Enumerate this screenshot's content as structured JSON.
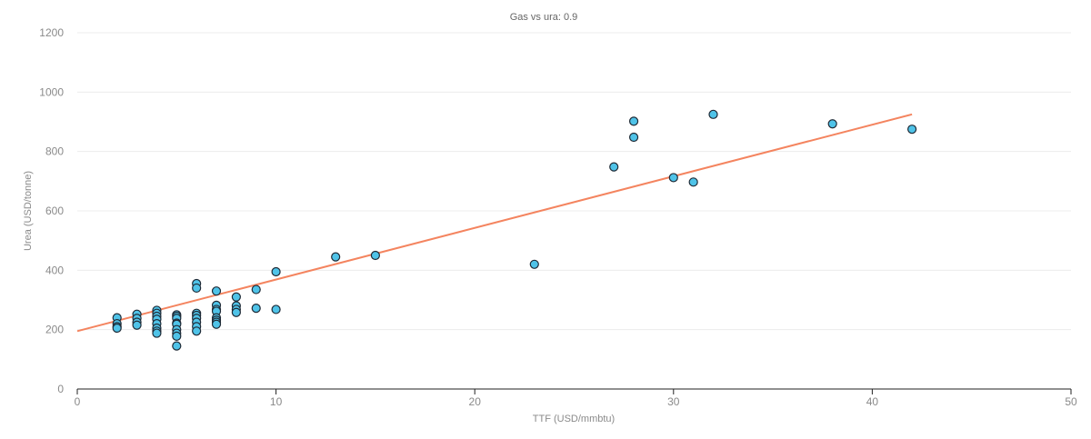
{
  "chart_data": {
    "type": "scatter",
    "title": "Gas vs ura: 0.9",
    "xlabel": "TTF (USD/mmbtu)",
    "ylabel": "Urea (USD/tonne)",
    "xlim": [
      0,
      50
    ],
    "ylim": [
      0,
      1200
    ],
    "x_ticks": [
      0,
      10,
      20,
      30,
      40,
      50
    ],
    "y_ticks": [
      0,
      200,
      400,
      600,
      800,
      1000,
      1200
    ],
    "grid": "horizontal",
    "legend": "none",
    "colors": {
      "points_fill": "#4fc3e8",
      "points_stroke": "#1f2a36",
      "trendline": "#f4845f"
    },
    "series": [
      {
        "points": [
          [
            2,
            240
          ],
          [
            2,
            220
          ],
          [
            2,
            210
          ],
          [
            2,
            205
          ],
          [
            3,
            252
          ],
          [
            3,
            238
          ],
          [
            3,
            225
          ],
          [
            3,
            215
          ],
          [
            4,
            265
          ],
          [
            4,
            255
          ],
          [
            4,
            245
          ],
          [
            4,
            235
          ],
          [
            4,
            220
          ],
          [
            4,
            205
          ],
          [
            4,
            195
          ],
          [
            4,
            188
          ],
          [
            5,
            250
          ],
          [
            5,
            245
          ],
          [
            5,
            238
          ],
          [
            5,
            222
          ],
          [
            5,
            218
          ],
          [
            5,
            200
          ],
          [
            5,
            188
          ],
          [
            5,
            178
          ],
          [
            5,
            145
          ],
          [
            6,
            355
          ],
          [
            6,
            340
          ],
          [
            6,
            255
          ],
          [
            6,
            248
          ],
          [
            6,
            238
          ],
          [
            6,
            225
          ],
          [
            6,
            210
          ],
          [
            6,
            195
          ],
          [
            7,
            330
          ],
          [
            7,
            282
          ],
          [
            7,
            268
          ],
          [
            7,
            262
          ],
          [
            7,
            240
          ],
          [
            7,
            232
          ],
          [
            7,
            225
          ],
          [
            7,
            218
          ],
          [
            8,
            310
          ],
          [
            8,
            280
          ],
          [
            8,
            268
          ],
          [
            8,
            258
          ],
          [
            9,
            335
          ],
          [
            9,
            272
          ],
          [
            10,
            395
          ],
          [
            10,
            268
          ],
          [
            13,
            445
          ],
          [
            15,
            450
          ],
          [
            23,
            420
          ],
          [
            27,
            748
          ],
          [
            28,
            902
          ],
          [
            28,
            848
          ],
          [
            30,
            712
          ],
          [
            31,
            697
          ],
          [
            32,
            925
          ],
          [
            38,
            893
          ],
          [
            42,
            875
          ]
        ]
      }
    ],
    "trendline": {
      "x": [
        0,
        42
      ],
      "y": [
        195,
        925
      ]
    }
  }
}
